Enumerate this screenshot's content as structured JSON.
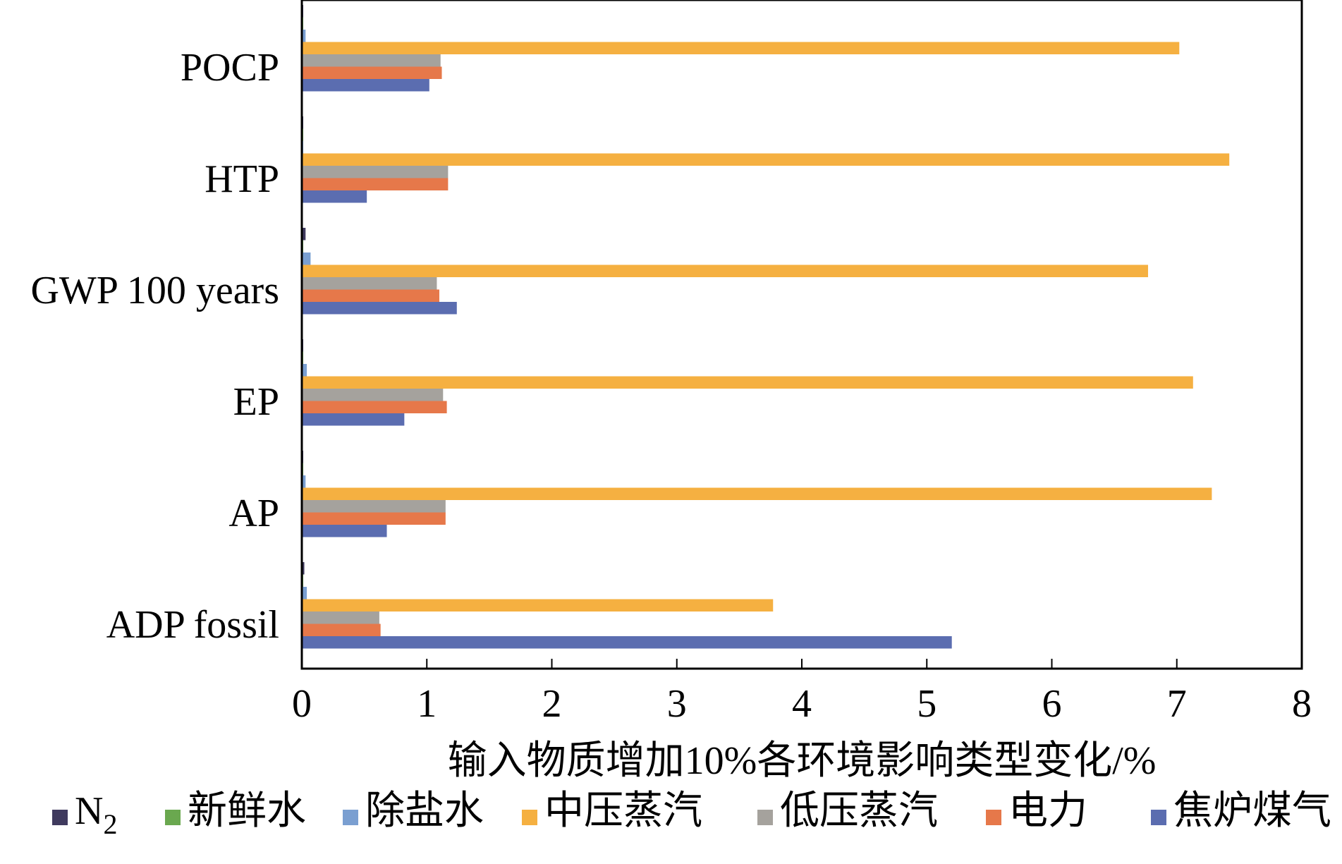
{
  "chart_data": {
    "type": "bar",
    "orientation": "horizontal",
    "categories": [
      "POCP",
      "HTP",
      "GWP 100 years",
      "EP",
      "AP",
      "ADP fossil"
    ],
    "series": [
      {
        "name": "N2",
        "color": "#3f3a5e",
        "values": [
          0.01,
          0.01,
          0.03,
          0.01,
          0.01,
          0.02
        ]
      },
      {
        "name": "新鲜水",
        "color": "#6aa84f",
        "values": [
          0.005,
          0.005,
          0.01,
          0.005,
          0.005,
          0.005
        ]
      },
      {
        "name": "除盐水",
        "color": "#7a9fd1",
        "values": [
          0.03,
          0.01,
          0.07,
          0.04,
          0.03,
          0.04
        ]
      },
      {
        "name": "中压蒸汽",
        "color": "#f5b041",
        "values": [
          7.02,
          7.42,
          6.77,
          7.13,
          7.28,
          3.77
        ]
      },
      {
        "name": "低压蒸汽",
        "color": "#a5a29d",
        "values": [
          1.11,
          1.17,
          1.08,
          1.13,
          1.15,
          0.62
        ]
      },
      {
        "name": "电力",
        "color": "#e6784a",
        "values": [
          1.12,
          1.17,
          1.1,
          1.16,
          1.15,
          0.63
        ]
      },
      {
        "name": "焦炉煤气",
        "color": "#5b6db0",
        "values": [
          1.02,
          0.52,
          1.24,
          0.82,
          0.68,
          5.2
        ]
      }
    ],
    "xlabel": "输入物质增加10%各环境影响类型变化/%",
    "xlim": [
      0,
      8
    ],
    "xticks": [
      0,
      1,
      2,
      3,
      4,
      5,
      6,
      7,
      8
    ],
    "grid": false,
    "legend_position": "bottom"
  }
}
